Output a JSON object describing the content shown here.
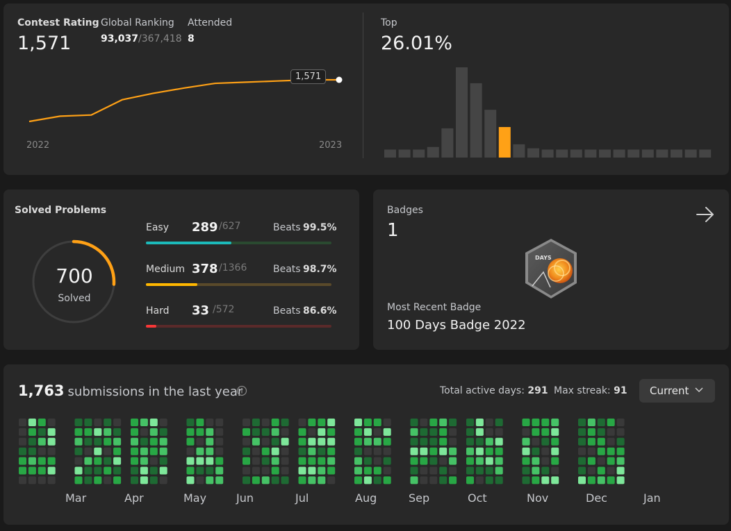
{
  "rating": {
    "label": "Contest Rating",
    "value": "1,571",
    "global_ranking_label": "Global Ranking",
    "global_rank": "93,037",
    "global_total": "/367,418",
    "attended_label": "Attended",
    "attended": "8",
    "tooltip": "1,571",
    "year_start": "2022",
    "year_end": "2023",
    "line_color": "#ffa116",
    "line_values": [
      1500,
      1509,
      1511,
      1537,
      1548,
      1557,
      1565,
      1567,
      1569,
      1571,
      1571
    ]
  },
  "top": {
    "label": "Top",
    "value": "26.01%",
    "highlight_color": "#ffa116",
    "histogram": [
      6,
      6,
      6,
      8,
      22,
      68,
      56,
      36,
      23,
      10,
      7,
      6,
      6,
      6,
      6,
      6,
      6,
      6,
      6,
      6,
      6,
      6,
      6
    ],
    "highlight_index": 8
  },
  "solved": {
    "label": "Solved Problems",
    "total": "700",
    "total_label": "Solved",
    "ring_fraction": 0.26,
    "ring_color": "#ffa116",
    "difficulties": [
      {
        "name": "Easy",
        "count": "289",
        "total": "/627",
        "beats_label": "Beats",
        "beats": "99.5%",
        "fraction": 0.461,
        "color": "#1cbaba",
        "track": "#2a4a30"
      },
      {
        "name": "Medium",
        "count": "378",
        "total": "/1366",
        "beats_label": "Beats",
        "beats": "98.7%",
        "fraction": 0.277,
        "color": "#ffb700",
        "track": "#5a4a2a"
      },
      {
        "name": "Hard",
        "count": "33",
        "total": "/572",
        "beats_label": "Beats",
        "beats": "86.6%",
        "fraction": 0.058,
        "color": "#f63737",
        "track": "#5a2a2a"
      }
    ]
  },
  "badges": {
    "label": "Badges",
    "count": "1",
    "recent_label": "Most Recent Badge",
    "recent_name": "100 Days Badge 2022",
    "badge_text": "DAYS"
  },
  "submissions": {
    "count": "1,763",
    "text": "submissions in the last year",
    "active_days_label": "Total active days:",
    "active_days": "291",
    "max_streak_label": "Max streak:",
    "max_streak": "91",
    "dropdown_value": "Current",
    "months": [
      "Mar",
      "Apr",
      "May",
      "Jun",
      "Jul",
      "Aug",
      "Sep",
      "Oct",
      "Nov",
      "Dec",
      "Jan"
    ],
    "colors": {
      "empty": "#393939",
      "l1": "#1e6a33",
      "l2": "#28a745",
      "l3": "#46c266",
      "l4": "#7ee79a"
    }
  }
}
